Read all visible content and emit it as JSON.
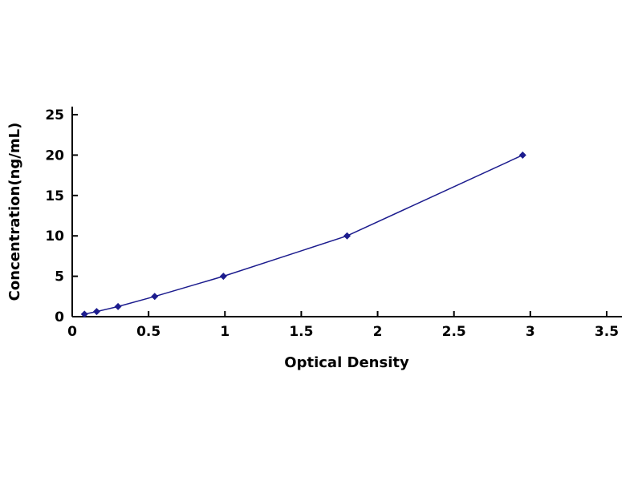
{
  "chart_data": {
    "type": "line",
    "title": "",
    "xlabel": "Optical Density",
    "ylabel": "Concentration(ng/mL)",
    "x": [
      0.08,
      0.16,
      0.3,
      0.54,
      0.99,
      1.8,
      2.95
    ],
    "y": [
      0.31,
      0.63,
      1.25,
      2.5,
      5,
      10,
      20
    ],
    "xlim": [
      0,
      3.6
    ],
    "ylim": [
      0,
      26
    ],
    "x_ticks": [
      0,
      0.5,
      1,
      1.5,
      2,
      2.5,
      3,
      3.5
    ],
    "x_tick_labels": [
      "0",
      "0.5",
      "1",
      "1.5",
      "2",
      "2.5",
      "3",
      "3.5"
    ],
    "y_ticks": [
      0,
      5,
      10,
      15,
      20,
      25
    ],
    "y_tick_labels": [
      "0",
      "5",
      "10",
      "15",
      "20",
      "25"
    ],
    "grid": false,
    "legend": "none",
    "line_color": "#1c1c8e",
    "marker": "diamond",
    "marker_color": "#1c1c8e",
    "axis_color": "#000000"
  }
}
